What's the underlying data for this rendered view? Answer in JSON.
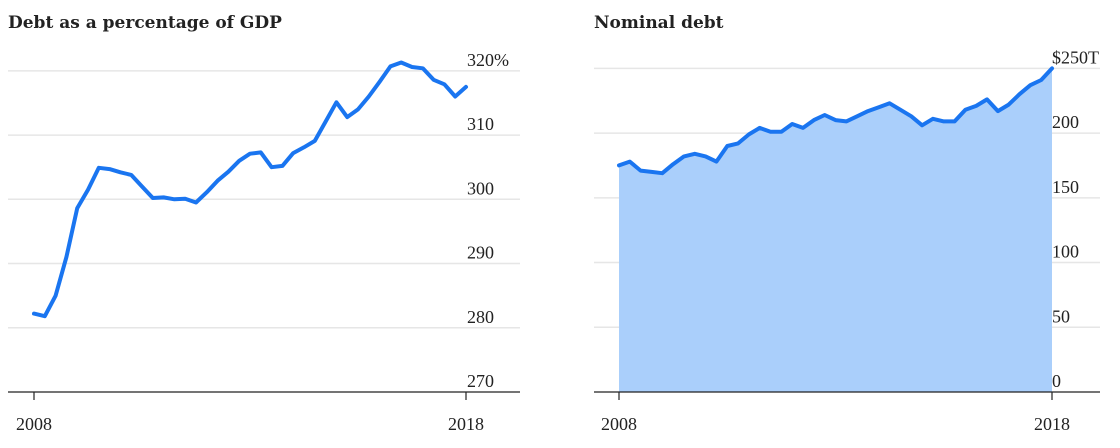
{
  "chart_data": [
    {
      "type": "line",
      "title": "Debt as a percentage of GDP",
      "xlabel": "",
      "ylabel": "",
      "x_ticks": [
        "2008",
        "2018"
      ],
      "y_ticks": [
        "320%",
        "310",
        "300",
        "290",
        "280",
        "270"
      ],
      "y_tick_values": [
        320,
        310,
        300,
        290,
        280,
        270
      ],
      "xlim": [
        2008,
        2018
      ],
      "ylim": [
        270,
        322
      ],
      "grid": true,
      "color": "#1a75f0",
      "series": [
        {
          "x": [
            2008.0,
            2008.25,
            2008.5,
            2008.75,
            2009.0,
            2009.25,
            2009.5,
            2009.75,
            2010.0,
            2010.25,
            2010.5,
            2010.75,
            2011.0,
            2011.25,
            2011.5,
            2011.75,
            2012.0,
            2012.25,
            2012.5,
            2012.75,
            2013.0,
            2013.25,
            2013.5,
            2013.75,
            2014.0,
            2014.25,
            2014.5,
            2014.75,
            2015.0,
            2015.25,
            2015.5,
            2015.75,
            2016.0,
            2016.25,
            2016.5,
            2016.75,
            2017.0,
            2017.25,
            2017.5,
            2017.75,
            2018.0
          ],
          "y": [
            282.2,
            281.8,
            285.0,
            291.0,
            298.6,
            301.5,
            304.9,
            304.7,
            304.2,
            303.8,
            302.0,
            300.2,
            300.3,
            300.0,
            300.1,
            299.5,
            301.1,
            302.9,
            304.3,
            306.0,
            307.1,
            307.3,
            305.0,
            305.2,
            307.2,
            308.1,
            309.1,
            312.1,
            315.1,
            312.8,
            314.0,
            316.0,
            318.3,
            320.7,
            321.3,
            320.6,
            320.4,
            318.6,
            317.9,
            316.0,
            317.5
          ]
        }
      ]
    },
    {
      "type": "area",
      "title": "Nominal debt",
      "xlabel": "",
      "ylabel": "",
      "x_ticks": [
        "2008",
        "2018"
      ],
      "y_ticks": [
        "$250T",
        "200",
        "150",
        "100",
        "50",
        "0"
      ],
      "y_tick_values": [
        250,
        200,
        150,
        100,
        50,
        0
      ],
      "xlim": [
        2008,
        2018
      ],
      "ylim": [
        0,
        258
      ],
      "grid": true,
      "color": "#1a75f0",
      "fill_color": "#aacffb",
      "series": [
        {
          "x": [
            2008.0,
            2008.25,
            2008.5,
            2008.75,
            2009.0,
            2009.25,
            2009.5,
            2009.75,
            2010.0,
            2010.25,
            2010.5,
            2010.75,
            2011.0,
            2011.25,
            2011.5,
            2011.75,
            2012.0,
            2012.25,
            2012.5,
            2012.75,
            2013.0,
            2013.25,
            2013.5,
            2013.75,
            2014.0,
            2014.25,
            2014.5,
            2014.75,
            2015.0,
            2015.25,
            2015.5,
            2015.75,
            2016.0,
            2016.25,
            2016.5,
            2016.75,
            2017.0,
            2017.25,
            2017.5,
            2017.75,
            2018.0
          ],
          "y": [
            175,
            178,
            171,
            170,
            169,
            176,
            182,
            184,
            182,
            178,
            190,
            192,
            199,
            204,
            201,
            201,
            207,
            204,
            210,
            214,
            210,
            209,
            213,
            217,
            220,
            223,
            218,
            213,
            206,
            211,
            209,
            209,
            218,
            221,
            226,
            217,
            222,
            230,
            237,
            241,
            250
          ]
        }
      ]
    }
  ]
}
